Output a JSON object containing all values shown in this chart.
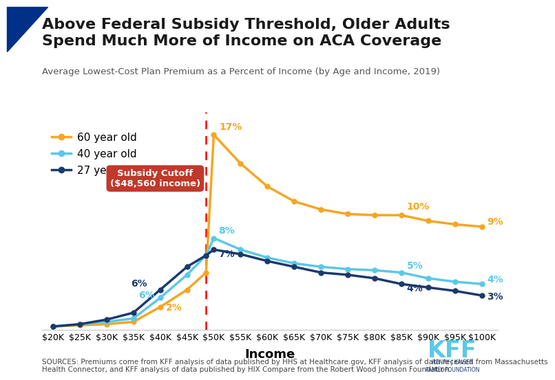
{
  "title_line1": "Above Federal Subsidy Threshold, Older Adults",
  "title_line2": "Spend Much More of Income on ACA Coverage",
  "subtitle": "Average Lowest-Cost Plan Premium as a Percent of Income (by Age and Income, 2019)",
  "xlabel": "Income",
  "source_text": "SOURCES: Premiums come from KFF analysis of data published by HHS at Healthcare.gov, KFF analysis of data received from Massachusetts\nHealth Connector, and KFF analysis of data published by HIX Compare from the Robert Wood Johnson Foundation.",
  "x_ticks": [
    "$20K",
    "$25K",
    "$30K",
    "$35K",
    "$40K",
    "$45K",
    "$50K",
    "$55K",
    "$60K",
    "$65K",
    "$70K",
    "$75K",
    "$80K",
    "$85K",
    "$90K",
    "$95K",
    "$100K"
  ],
  "x_values": [
    20,
    25,
    30,
    35,
    40,
    45,
    50,
    55,
    60,
    65,
    70,
    75,
    80,
    85,
    90,
    95,
    100
  ],
  "subsidy_cutoff_x": 48.56,
  "age60": {
    "label": "60 year old",
    "color": "#F5A623",
    "data_x": [
      20,
      25,
      30,
      35,
      40,
      45,
      48.56,
      50,
      55,
      60,
      65,
      70,
      75,
      80,
      85,
      90,
      95,
      100
    ],
    "data_y": [
      0.3,
      0.4,
      0.5,
      0.7,
      2.0,
      3.5,
      5.0,
      17.0,
      14.5,
      12.5,
      11.2,
      10.5,
      10.1,
      10.0,
      10.0,
      9.5,
      9.2,
      9.0
    ]
  },
  "age40": {
    "label": "40 year old",
    "color": "#5BC8E8",
    "data_x": [
      20,
      25,
      30,
      35,
      40,
      45,
      48.56,
      50,
      55,
      60,
      65,
      70,
      75,
      80,
      85,
      90,
      95,
      100
    ],
    "data_y": [
      0.3,
      0.5,
      0.7,
      1.0,
      2.8,
      4.8,
      6.5,
      8.0,
      7.0,
      6.3,
      5.8,
      5.5,
      5.3,
      5.2,
      5.0,
      4.5,
      4.2,
      4.0
    ]
  },
  "age27": {
    "label": "27 year old",
    "color": "#1B3A6B",
    "data_x": [
      20,
      25,
      30,
      35,
      40,
      45,
      48.56,
      50,
      55,
      60,
      65,
      70,
      75,
      80,
      85,
      90,
      95,
      100
    ],
    "data_y": [
      0.3,
      0.5,
      0.9,
      1.5,
      3.5,
      5.5,
      6.5,
      7.0,
      6.6,
      6.0,
      5.5,
      5.0,
      4.8,
      4.5,
      4.0,
      3.7,
      3.4,
      3.0
    ]
  },
  "subsidy_box_text": "Subsidy Cutoff\n($48,560 income)",
  "subsidy_box_color": "#C0392B",
  "background_color": "#FFFFFF",
  "title_color": "#1A1A1A",
  "title_bg_color": "#003087",
  "ylim": [
    0,
    19
  ],
  "xlim": [
    18,
    103
  ]
}
